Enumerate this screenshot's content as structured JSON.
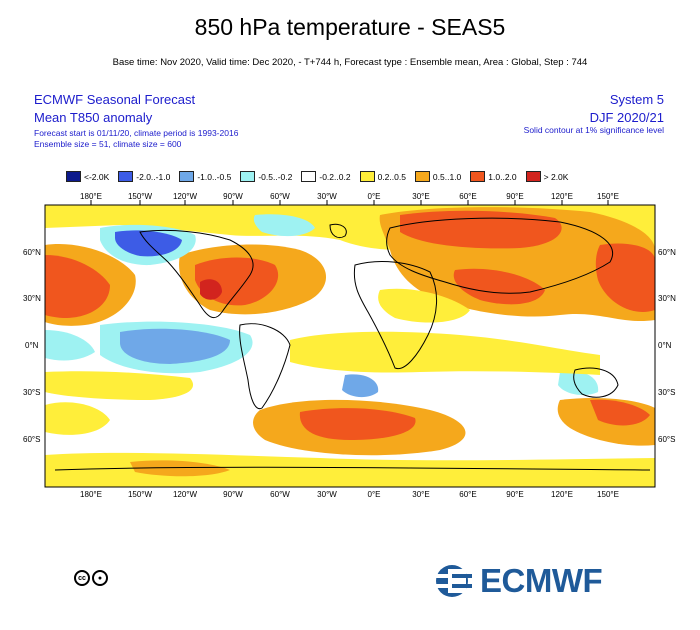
{
  "title": "850 hPa temperature - SEAS5",
  "subtitle": "Base time: Nov 2020, Valid time: Dec 2020, - T+744 h, Forecast type : Ensemble mean, Area : Global, Step : 744",
  "header_left": {
    "line1": "ECMWF Seasonal Forecast",
    "line2": "Mean T850 anomaly",
    "line3": "Forecast start is 01/11/20, climate period is 1993-2016",
    "line4": "Ensemble size = 51, climate size = 600"
  },
  "header_right": {
    "line1": "System 5",
    "line2": "DJF 2020/21",
    "line3": "Solid contour at 1% significance level"
  },
  "legend": [
    {
      "label": "<-2.0K",
      "color": "#0d1a8c"
    },
    {
      "label": "-2.0..-1.0",
      "color": "#3d5ce6"
    },
    {
      "label": "-1.0..-0.5",
      "color": "#6fa8e8"
    },
    {
      "label": "-0.5..-0.2",
      "color": "#9ef2f2"
    },
    {
      "label": "-0.2..0.2",
      "color": "#ffffff"
    },
    {
      "label": "0.2..0.5",
      "color": "#ffee3a"
    },
    {
      "label": "0.5..1.0",
      "color": "#f5a81c"
    },
    {
      "label": "1.0..2.0",
      "color": "#f0561e"
    },
    {
      "label": "> 2.0K",
      "color": "#d2241e"
    }
  ],
  "lon_labels": [
    "180°E",
    "150°W",
    "120°W",
    "90°W",
    "60°W",
    "30°W",
    "0°E",
    "30°E",
    "60°E",
    "90°E",
    "120°E",
    "150°E"
  ],
  "lat_labels": [
    "60°N",
    "30°N",
    "0°N",
    "30°S",
    "60°S"
  ],
  "copyright_icons": [
    "cc-icon",
    "by-icon"
  ],
  "logo_text": "ECMWF"
}
